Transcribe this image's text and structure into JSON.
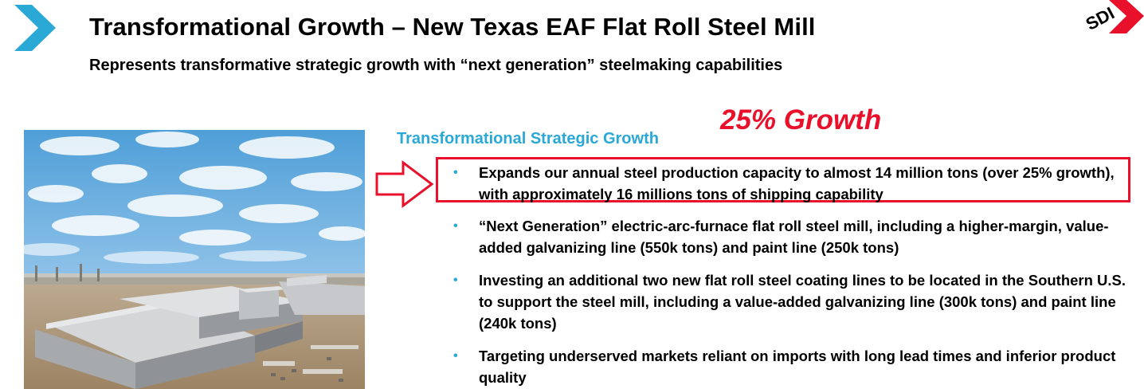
{
  "header": {
    "title": "Transformational Growth – New Texas EAF Flat Roll Steel Mill",
    "subtitle": "Represents transformative strategic growth with “next generation” steelmaking capabilities"
  },
  "logo": {
    "text": "SDI"
  },
  "callout": {
    "label": "25% Growth"
  },
  "section": {
    "heading": "Transformational Strategic Growth",
    "bullets": [
      {
        "text": "Expands our annual steel production capacity to almost 14 million tons (over 25% growth), with approximately 16 millions tons of shipping capability"
      },
      {
        "text": "“Next Generation” electric-arc-furnace flat roll steel mill, including a higher-margin, value-added galvanizing line (550k tons) and paint line (250k tons)"
      },
      {
        "text": "Investing an additional two new flat roll steel coating lines to be located in the Southern U.S. to support the steel mill, including a value-added galvanizing line (300k tons) and paint line (240k tons)"
      },
      {
        "text": "Targeting underserved markets reliant on imports with long lead times and inferior product quality"
      }
    ],
    "bullet_glyph": "•"
  },
  "colors": {
    "accent_blue": "#2aa8d6",
    "highlight_red": "#e8102a"
  }
}
